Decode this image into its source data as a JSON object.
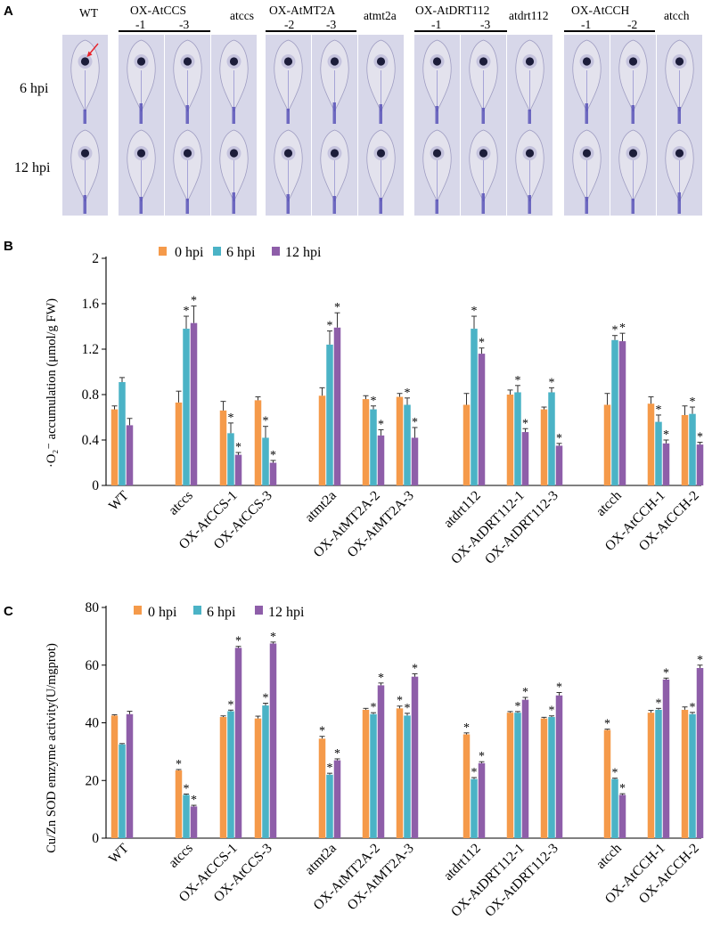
{
  "panel_a": {
    "letter": "A",
    "row_labels": [
      "6 hpi",
      "12 hpi"
    ],
    "col_labels": [
      "WT",
      "-1",
      "-3",
      "atccs",
      "-2",
      "-3",
      "atmt2a",
      "-1",
      "-3",
      "atdrt112",
      "-1",
      "-2",
      "atcch"
    ],
    "group_headers": [
      "OX-AtCCS",
      "OX-AtMT2A",
      "OX-AtDRT112",
      "OX-AtCCH"
    ],
    "colors": {
      "leaf_bg": "#d7d7e9",
      "stain": "#5a55b8",
      "lesion": "#1c1d3a",
      "arrow": "#e8232a"
    }
  },
  "chart_data": [
    {
      "panel": "B",
      "type": "bar",
      "ylabel": "·O₂⁻ accumulation (μmol/g FW)",
      "xlabel": "",
      "ylim": [
        0,
        2
      ],
      "yticks": [
        "0",
        "0.4",
        "0.8",
        "1.2",
        "1.6",
        "2"
      ],
      "legend": "top-left",
      "grid": false,
      "categories": [
        "WT",
        "atccs",
        "OX-AtCCS-1",
        "OX-AtCCS-3",
        "atmt2a",
        "OX-AtMT2A-2",
        "OX-AtMT2A-3",
        "atdrt112",
        "OX-AtDRT112-1",
        "OX-AtDRT112-3",
        "atcch",
        "OX-AtCCH-1",
        "OX-AtCCH-2"
      ],
      "series": [
        {
          "name": "0 hpi",
          "color": "#f59a4a",
          "values": [
            0.67,
            0.73,
            0.66,
            0.75,
            0.79,
            0.76,
            0.78,
            0.71,
            0.8,
            0.67,
            0.71,
            0.72,
            0.62
          ],
          "errors": [
            0.03,
            0.1,
            0.08,
            0.03,
            0.07,
            0.03,
            0.03,
            0.1,
            0.04,
            0.02,
            0.1,
            0.06,
            0.08
          ],
          "sig": [
            false,
            false,
            false,
            false,
            false,
            false,
            false,
            false,
            false,
            false,
            false,
            false,
            false
          ]
        },
        {
          "name": "6 hpi",
          "color": "#4bb3c6",
          "values": [
            0.91,
            1.38,
            0.46,
            0.42,
            1.24,
            0.67,
            0.71,
            1.38,
            0.82,
            0.82,
            1.28,
            0.56,
            0.63
          ],
          "errors": [
            0.04,
            0.11,
            0.09,
            0.1,
            0.12,
            0.03,
            0.06,
            0.11,
            0.06,
            0.04,
            0.04,
            0.06,
            0.06
          ],
          "sig": [
            false,
            true,
            true,
            true,
            true,
            true,
            true,
            true,
            true,
            true,
            true,
            true,
            true
          ]
        },
        {
          "name": "12 hpi",
          "color": "#8e5ea9",
          "values": [
            0.53,
            1.43,
            0.27,
            0.2,
            1.39,
            0.44,
            0.42,
            1.16,
            0.47,
            0.35,
            1.27,
            0.37,
            0.36
          ],
          "errors": [
            0.06,
            0.15,
            0.02,
            0.02,
            0.13,
            0.05,
            0.09,
            0.05,
            0.03,
            0.02,
            0.07,
            0.03,
            0.02
          ],
          "sig": [
            false,
            true,
            true,
            true,
            true,
            true,
            true,
            true,
            true,
            true,
            true,
            true,
            true
          ]
        }
      ]
    },
    {
      "panel": "C",
      "type": "bar",
      "ylabel": "Cu/Zn SOD  emzyme activity(U/mgprot)",
      "xlabel": "",
      "ylim": [
        0,
        80
      ],
      "yticks": [
        "0",
        "20",
        "40",
        "60",
        "80"
      ],
      "legend": "top-left",
      "grid": false,
      "categories": [
        "WT",
        "atccs",
        "OX-AtCCS-1",
        "OX-AtCCS-3",
        "atmt2a",
        "OX-AtMT2A-2",
        "OX-AtMT2A-3",
        "atdrt112",
        "OX-AtDRT112-1",
        "OX-AtDRT112-3",
        "atcch",
        "OX-AtCCH-1",
        "OX-AtCCH-2"
      ],
      "series": [
        {
          "name": "0 hpi",
          "color": "#f59a4a",
          "values": [
            42.5,
            23.5,
            42.0,
            41.5,
            34.5,
            44.5,
            45.0,
            36.0,
            43.5,
            41.5,
            37.5,
            43.5,
            44.5
          ],
          "errors": [
            0.3,
            0.3,
            0.4,
            0.8,
            0.8,
            0.5,
            0.8,
            0.5,
            0.4,
            0.4,
            0.3,
            0.8,
            1.0
          ],
          "sig": [
            false,
            true,
            false,
            false,
            true,
            false,
            true,
            true,
            false,
            false,
            true,
            false,
            false
          ]
        },
        {
          "name": "6 hpi",
          "color": "#4bb3c6",
          "values": [
            32.5,
            15.0,
            44.0,
            46.0,
            22.0,
            43.0,
            42.5,
            20.5,
            43.5,
            42.0,
            20.5,
            44.5,
            43.0
          ],
          "errors": [
            0.3,
            0.3,
            0.4,
            0.8,
            0.5,
            0.5,
            0.8,
            0.5,
            0.4,
            0.4,
            0.3,
            0.5,
            0.6
          ],
          "sig": [
            false,
            true,
            true,
            true,
            true,
            true,
            true,
            true,
            true,
            true,
            true,
            true,
            true
          ]
        },
        {
          "name": "12 hpi",
          "color": "#8e5ea9",
          "values": [
            43.0,
            11.0,
            66.0,
            67.5,
            27.0,
            53.0,
            56.0,
            26.0,
            48.0,
            49.5,
            15.0,
            55.0,
            59.0
          ],
          "errors": [
            1.0,
            0.4,
            0.5,
            0.5,
            0.5,
            0.8,
            1.0,
            0.5,
            0.8,
            1.0,
            0.4,
            0.5,
            1.0
          ],
          "sig": [
            false,
            true,
            true,
            true,
            true,
            true,
            true,
            true,
            true,
            true,
            true,
            true,
            true
          ]
        }
      ]
    }
  ]
}
